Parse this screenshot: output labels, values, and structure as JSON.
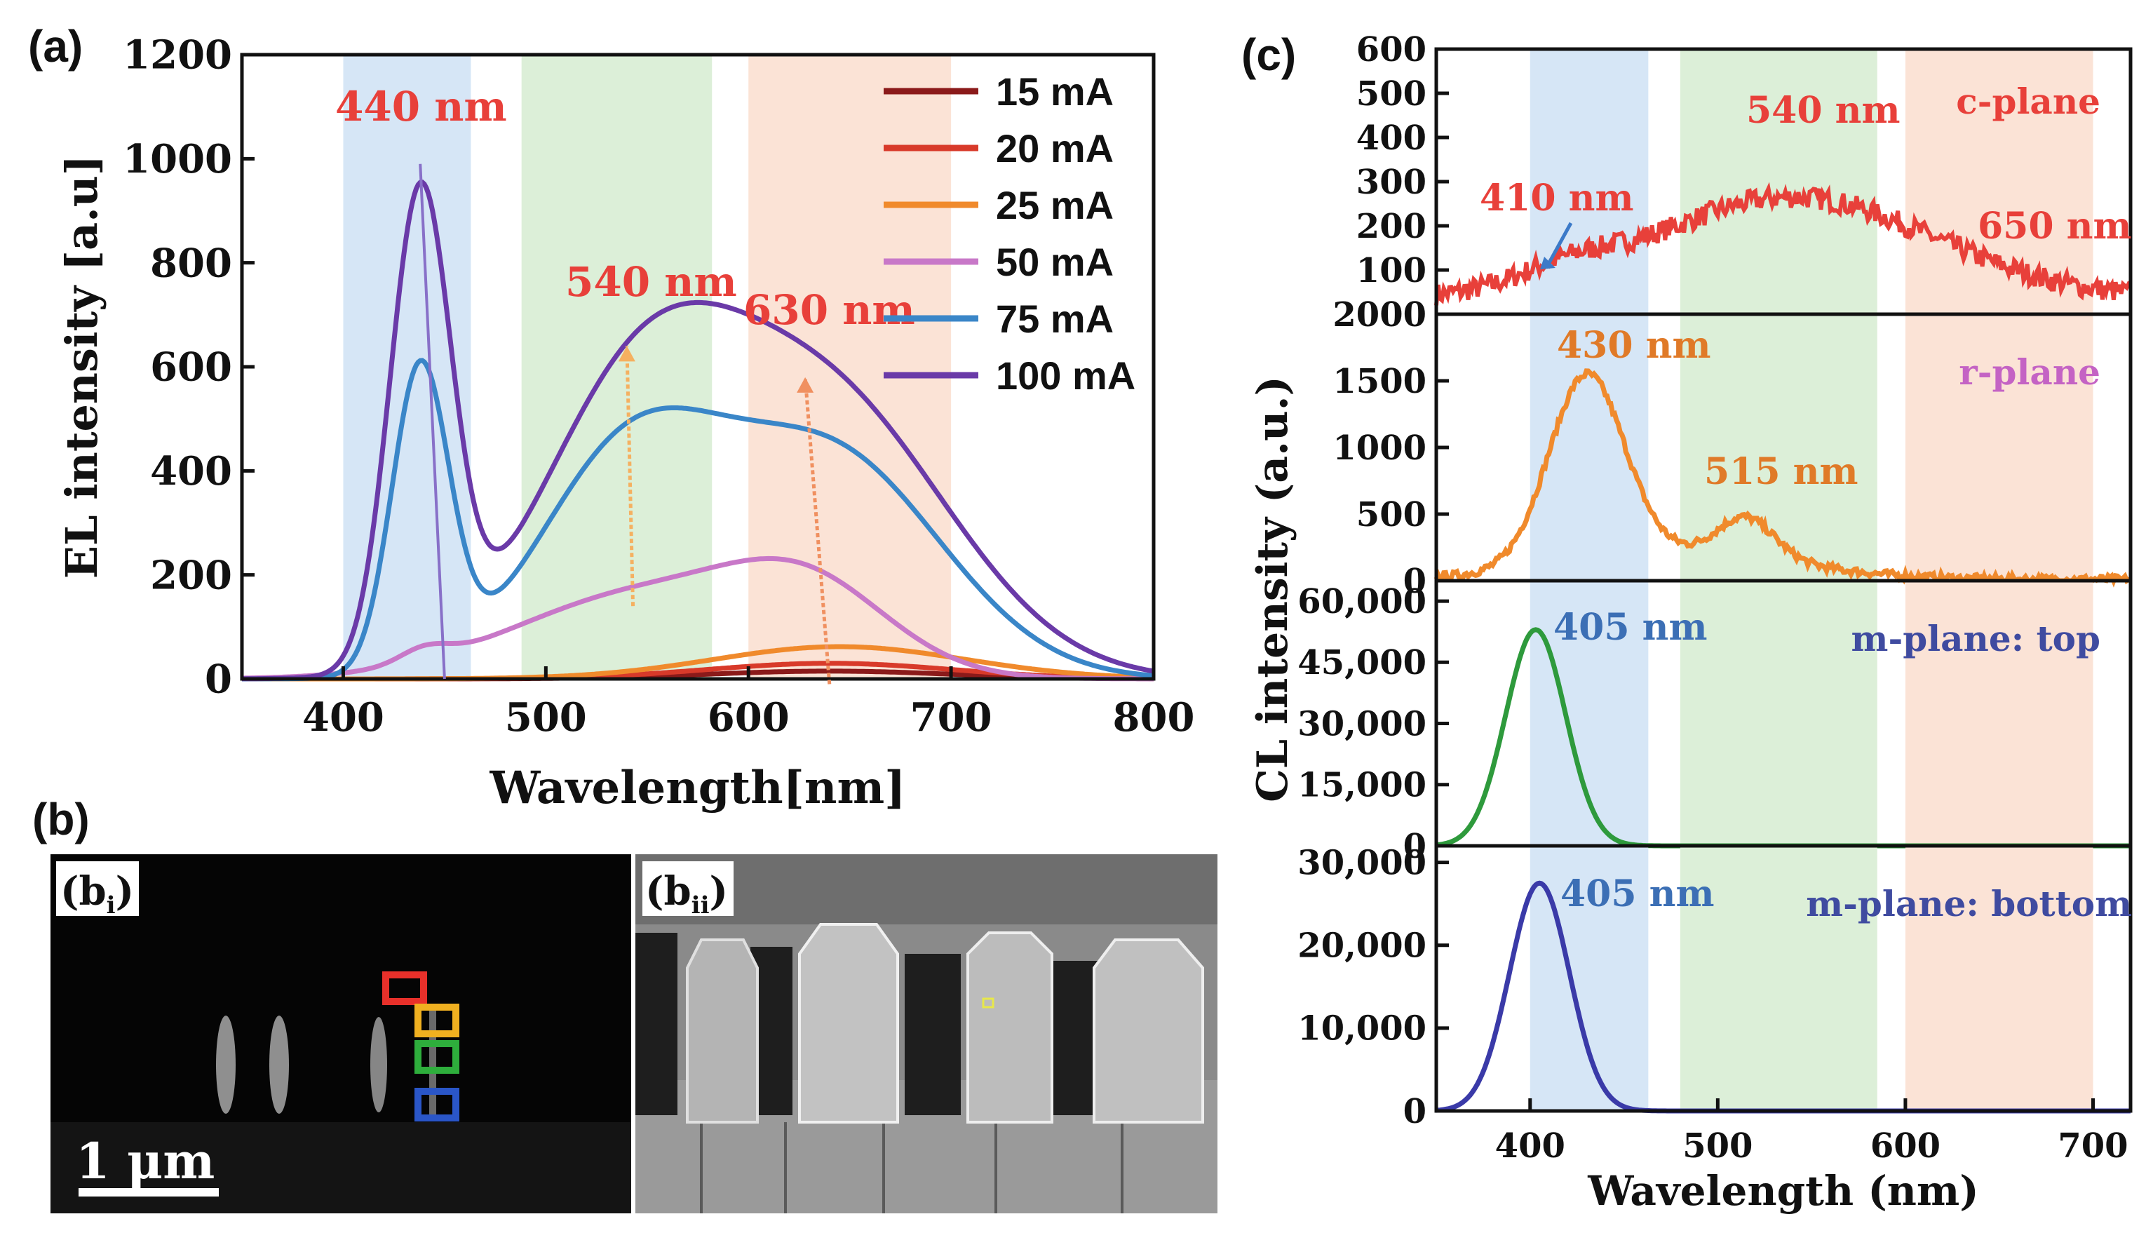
{
  "colors": {
    "band_blue": "#d6e6f6",
    "band_green": "#dcefd8",
    "band_orange": "#fbe3d6",
    "red_label": "#e8403a",
    "orange_label": "#e07a28",
    "blue_label": "#3c6fb5",
    "navy_label": "#3f4ba0",
    "pink_label": "#c463c4"
  },
  "panel_labels": {
    "a": "(a)",
    "b": "(b)",
    "c": "(c)",
    "bi": "(b",
    "bi_sub": "i",
    "bii": "(b",
    "bii_sub": "ii",
    "bi_close": ")",
    "bii_close": ")"
  },
  "scale_bar": "1 μm",
  "chart_data": [
    {
      "id": "a",
      "type": "line",
      "xlabel": "Wavelength[nm]",
      "ylabel": "EL intensity [a.u]",
      "xlim": [
        350,
        800
      ],
      "ylim": [
        0,
        1200
      ],
      "xticks": [
        "400",
        "500",
        "600",
        "700",
        "800"
      ],
      "yticks": [
        "0",
        "200",
        "400",
        "600",
        "800",
        "1000",
        "1200"
      ],
      "bands": [
        {
          "from": 400,
          "to": 463,
          "color": "blue"
        },
        {
          "from": 488,
          "to": 582,
          "color": "green"
        },
        {
          "from": 600,
          "to": 700,
          "color": "orange"
        }
      ],
      "annotations": [
        "440 nm",
        "540 nm",
        "630 nm"
      ],
      "legend_position": "top-right",
      "series": [
        {
          "name": "15 mA",
          "color": "#8b1a1a",
          "peaks": [
            [
              640,
              15,
              60
            ]
          ],
          "base": 0
        },
        {
          "name": "20 mA",
          "color": "#d83a2a",
          "peaks": [
            [
              640,
              30,
              60
            ]
          ],
          "base": 0
        },
        {
          "name": "25 mA",
          "color": "#f08a2c",
          "peaks": [
            [
              645,
              62,
              62
            ]
          ],
          "base": 0
        },
        {
          "name": "50 mA",
          "color": "#c878c8",
          "peaks": [
            [
              550,
              165,
              65
            ],
            [
              630,
              140,
              40
            ],
            [
              440,
              25,
              12
            ]
          ],
          "base": 0
        },
        {
          "name": "75 mA",
          "color": "#3a86c8",
          "peaks": [
            [
              438,
              580,
              14
            ],
            [
              540,
              410,
              45
            ],
            [
              640,
              430,
              55
            ]
          ],
          "base": 0
        },
        {
          "name": "100 mA",
          "color": "#6a3aa8",
          "peaks": [
            [
              438,
              900,
              15
            ],
            [
              545,
              520,
              50
            ],
            [
              640,
              520,
              60
            ]
          ],
          "base": 0
        }
      ]
    },
    {
      "id": "c1",
      "type": "line",
      "label": "c-plane",
      "xlim": [
        350,
        720
      ],
      "ylim": [
        0,
        600
      ],
      "yticks": [
        "100",
        "200",
        "300",
        "400",
        "500",
        "600"
      ],
      "annotations": [
        "540 nm",
        "410 nm",
        "650 nm"
      ],
      "series": [
        {
          "name": "c-plane",
          "color": "#e8403a",
          "peaks": [
            [
              540,
              230,
              75
            ],
            [
              420,
              35,
              25
            ]
          ],
          "base": 35,
          "noise": 25
        }
      ]
    },
    {
      "id": "c2",
      "type": "line",
      "label": "r-plane",
      "xlim": [
        350,
        720
      ],
      "ylim": [
        0,
        2000
      ],
      "yticks": [
        "0",
        "500",
        "1000",
        "1500",
        "2000"
      ],
      "annotations": [
        "430 nm",
        "515 nm"
      ],
      "series": [
        {
          "name": "r-plane",
          "color": "#f08a2c",
          "peaks": [
            [
              430,
              1400,
              20
            ],
            [
              515,
              300,
              15
            ],
            [
              480,
              200,
              60
            ]
          ],
          "base": 10,
          "noise": 30
        }
      ]
    },
    {
      "id": "c3",
      "type": "line",
      "label": "m-plane: top",
      "xlim": [
        350,
        720
      ],
      "ylim": [
        0,
        65000
      ],
      "yticks": [
        "0",
        "15,000",
        "30,000",
        "45,000",
        "60,000"
      ],
      "annotations": [
        "405 nm"
      ],
      "series": [
        {
          "name": "m-plane: top",
          "color": "#2e9a3c",
          "peaks": [
            [
              403,
              53000,
              16
            ]
          ],
          "base": 0
        }
      ]
    },
    {
      "id": "c4",
      "type": "line",
      "label": "m-plane: bottom",
      "xlim": [
        350,
        720
      ],
      "ylim": [
        0,
        32000
      ],
      "yticks": [
        "0",
        "10,000",
        "20,000",
        "30,000"
      ],
      "xticks": [
        "400",
        "500",
        "600",
        "700"
      ],
      "xlabel": "Wavelength (nm)",
      "annotations": [
        "405 nm"
      ],
      "series": [
        {
          "name": "m-plane: bottom",
          "color": "#3a3aa8",
          "peaks": [
            [
              405,
              27500,
              16
            ]
          ],
          "base": 0
        }
      ]
    }
  ],
  "c_shared_ylabel": "CL intensity (a.u.)",
  "c_bands": [
    {
      "from": 400,
      "to": 463,
      "color": "blue"
    },
    {
      "from": 480,
      "to": 585,
      "color": "green"
    },
    {
      "from": 600,
      "to": 700,
      "color": "orange"
    }
  ]
}
